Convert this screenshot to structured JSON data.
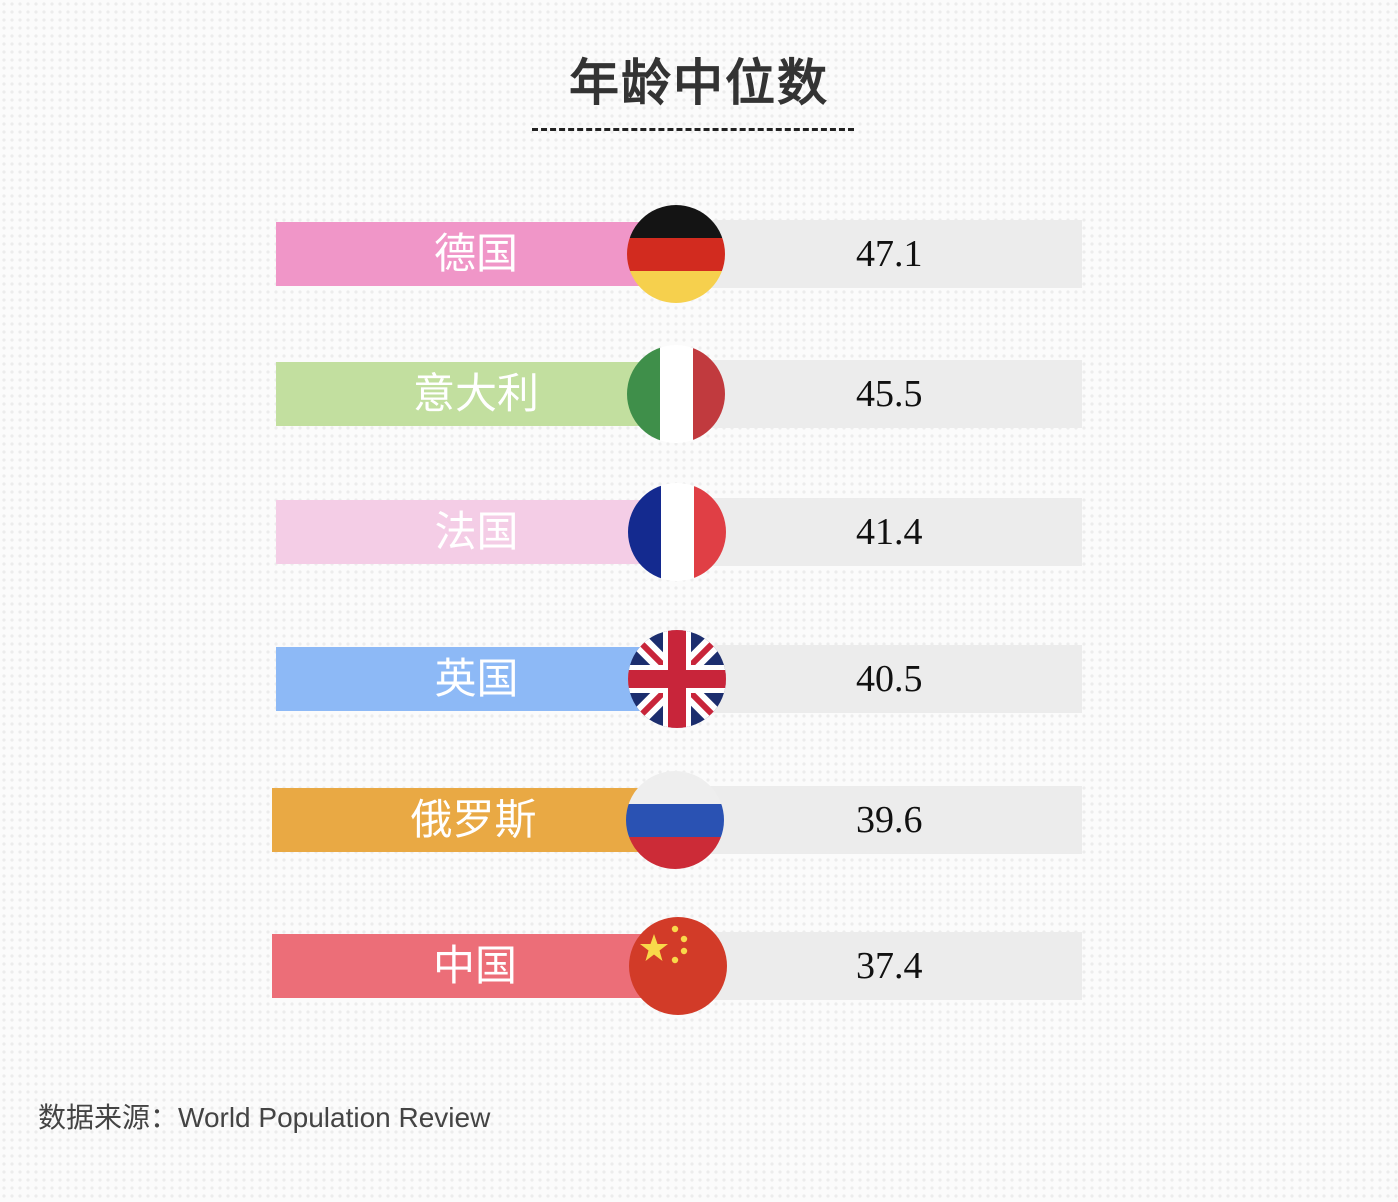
{
  "chart_data": {
    "type": "bar",
    "title": "年龄中位数",
    "categories": [
      "德国",
      "意大利",
      "法国",
      "英国",
      "俄罗斯",
      "中国"
    ],
    "values": [
      47.1,
      45.5,
      41.4,
      40.5,
      39.6,
      37.4
    ],
    "value_labels": [
      "47.1",
      "45.5",
      "41.4",
      "40.5",
      "39.6",
      "37.4"
    ],
    "label_colors": [
      "#f096c8",
      "#c2df9f",
      "#f4cde6",
      "#8db9f6",
      "#e9a944",
      "#ec6e78"
    ],
    "flags": [
      "germany-flag-icon",
      "italy-flag-icon",
      "france-flag-icon",
      "uk-flag-icon",
      "russia-flag-icon",
      "china-flag-icon"
    ],
    "track_color": "#ececec"
  },
  "source": {
    "label": "数据来源：",
    "name": "World Population Review"
  }
}
